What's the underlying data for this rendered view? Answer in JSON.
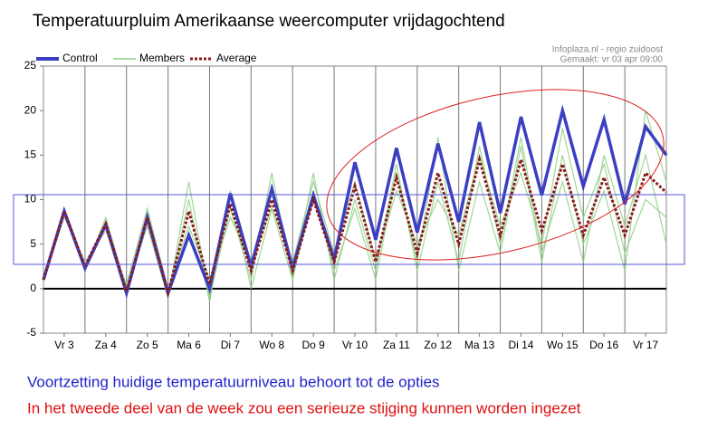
{
  "chart_data": {
    "type": "line",
    "title": "Temperatuurpluim Amerikaanse weercomputer vrijdagochtend",
    "source": "Infoplaza.nl - regio zuidoost",
    "made": "Gemaakt: vr 03 apr 09:00",
    "caption_blue": "Voortzetting huidige temperatuurniveau behoort tot de opties",
    "caption_red": "In het tweede deel van de week zou een serieuze stijging kunnen worden ingezet",
    "categories": [
      null,
      "Vr 3",
      null,
      "Za 4",
      null,
      "Zo 5",
      null,
      "Ma 6",
      null,
      "Di 7",
      null,
      "Wo 8",
      null,
      "Do 9",
      null,
      "Vr 10",
      null,
      "Za 11",
      null,
      "Zo 12",
      null,
      "Ma 13",
      null,
      "Di 14",
      null,
      "Wo 15",
      null,
      "Do 16",
      null,
      "Vr 17",
      null
    ],
    "ylim": [
      -5,
      25
    ],
    "yticks": [
      -5,
      0,
      5,
      10,
      15,
      20,
      25
    ],
    "members": {
      "name": "Members",
      "color": "#8fcf86",
      "runs": [
        [
          1,
          9,
          2,
          8,
          0,
          7,
          -1,
          12,
          -1,
          9,
          1,
          13,
          1,
          11,
          2,
          9,
          1,
          13,
          3,
          17,
          2,
          12,
          4,
          16,
          3,
          15,
          5,
          11,
          2,
          20,
          12
        ],
        [
          1,
          8,
          3,
          6.5,
          0.5,
          9,
          0,
          7,
          1,
          8,
          3,
          9,
          3,
          12,
          4,
          12,
          3,
          11,
          5,
          10,
          6,
          15,
          7,
          13,
          5,
          18,
          8,
          14,
          4,
          10,
          8
        ],
        [
          1,
          8.5,
          2,
          7.5,
          -0.8,
          8.5,
          -1,
          10,
          -1.5,
          11,
          0,
          9,
          1,
          13,
          1,
          10,
          2,
          14,
          2,
          12,
          3,
          16,
          5,
          17,
          4,
          12,
          3,
          15,
          7,
          15,
          5
        ]
      ]
    },
    "series": [
      {
        "name": "Control",
        "color": "#3a3fc4",
        "values": [
          1,
          8.7,
          2.3,
          7.2,
          -0.5,
          8.0,
          -0.5,
          6,
          0,
          10.7,
          2.5,
          11.2,
          2.3,
          10.5,
          3.3,
          14.2,
          5.5,
          15.8,
          6.3,
          16.3,
          7.5,
          18.7,
          8.5,
          19.3,
          10.5,
          20,
          11.5,
          19,
          9.5,
          18.2,
          15
        ]
      },
      {
        "name": "Average",
        "color": "#8b1a1a",
        "values": [
          1,
          8.7,
          2.5,
          7.3,
          -0.3,
          8,
          -0.5,
          8.7,
          0.5,
          9.5,
          2,
          10,
          2,
          10,
          3,
          11.5,
          3,
          12.5,
          4,
          13,
          5,
          14.5,
          6,
          14.5,
          6.5,
          14,
          6,
          12.5,
          6,
          13,
          10.8
        ]
      }
    ]
  }
}
